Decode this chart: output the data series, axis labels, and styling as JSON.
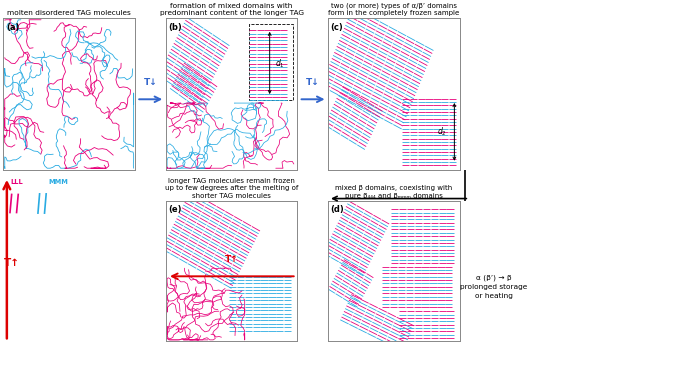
{
  "pink": "#E8007A",
  "blue": "#29ABE2",
  "red_arrow": "#DD0000",
  "blue_arrow": "#3366CC",
  "bg": "#FFFFFF",
  "titles": {
    "a": "molten disordered TAG molecules",
    "b": "formation of mixed domains with\npredominant content of the longer TAG",
    "c": "two (or more) types of α/β’ domains\nform in the completely frozen sample",
    "d": "mixed β domains, coexisting with\npure β₄₄₄ and βₘₘₘ domains",
    "e": "longer TAG molecules remain frozen\nup to few degrees after the melting of\nshorter TAG molecules"
  },
  "labels": {
    "a": "(a)",
    "b": "(b)",
    "c": "(c)",
    "d": "(d)",
    "e": "(e)"
  },
  "side_text": "α (β’) → β\nprolonged storage\nor heating",
  "lll_label": "LLL",
  "mmm_label": "MMM",
  "seed": 1234
}
